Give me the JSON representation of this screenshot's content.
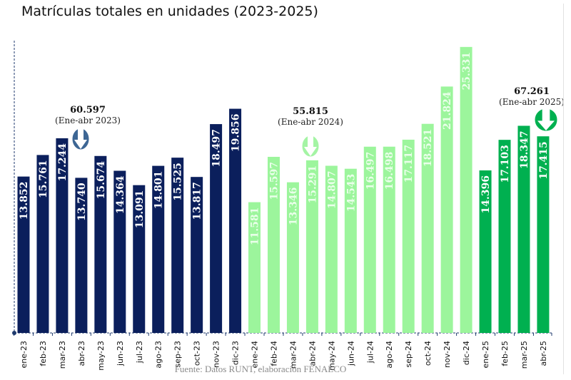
{
  "chart_data": {
    "type": "bar",
    "title": "Matrículas totales en unidades (2023-2025)",
    "source": "Fuente: Datos RUNT, elaboración FENALCO",
    "categories": [
      "ene-23",
      "feb-23",
      "mar-23",
      "abr-23",
      "may-23",
      "jun-23",
      "jul-23",
      "ago-23",
      "sep-23",
      "oct-23",
      "nov-23",
      "dic-23",
      "ene-24",
      "feb-24",
      "mar-24",
      "abr-24",
      "may-24",
      "jun-24",
      "jul-24",
      "ago-24",
      "sep-24",
      "oct-24",
      "nov-24",
      "dic-24",
      "ene-25",
      "feb-25",
      "mar-25",
      "abr-25"
    ],
    "values": [
      13852,
      15761,
      17244,
      13740,
      15674,
      14364,
      13091,
      14801,
      15525,
      13817,
      18497,
      19856,
      11581,
      15597,
      13346,
      15291,
      14807,
      14543,
      16497,
      16498,
      17117,
      18521,
      21824,
      25331,
      14396,
      17103,
      18347,
      17415
    ],
    "value_labels": [
      "13.852",
      "15.761",
      "17.244",
      "13.740",
      "15.674",
      "14.364",
      "13.091",
      "14.801",
      "15.525",
      "13.817",
      "18.497",
      "19.856",
      "11.581",
      "15.597",
      "13.346",
      "15.291",
      "14.807",
      "14.543",
      "16.497",
      "16.498",
      "17.117",
      "18.521",
      "21.824",
      "25.331",
      "14.396",
      "17.103",
      "18.347",
      "17.415"
    ],
    "year_groups": [
      {
        "year": "2023",
        "count": 12,
        "color": "#0b1f5c",
        "label_color": "#ffffff",
        "arrow_color": "#3d6694"
      },
      {
        "year": "2024",
        "count": 12,
        "color": "#9cf59c",
        "label_color": "#eaffea",
        "arrow_color": "#a4f4a4"
      },
      {
        "year": "2025",
        "count": 4,
        "color": "#00b050",
        "label_color": "#ffffff",
        "arrow_color": "#00b050"
      }
    ],
    "annotations": [
      {
        "total": "60.597",
        "period": "(Ene-abr 2023)",
        "after_category": "abr-23"
      },
      {
        "total": "55.815",
        "period": "(Ene-abr 2024)",
        "after_category": "abr-24"
      },
      {
        "total": "67.261",
        "period": "(Ene-abr 2025)",
        "after_category": "abr-25"
      }
    ],
    "ylim": [
      0,
      25700
    ],
    "grid": false,
    "legend": "none",
    "xlabel": "",
    "ylabel": ""
  }
}
